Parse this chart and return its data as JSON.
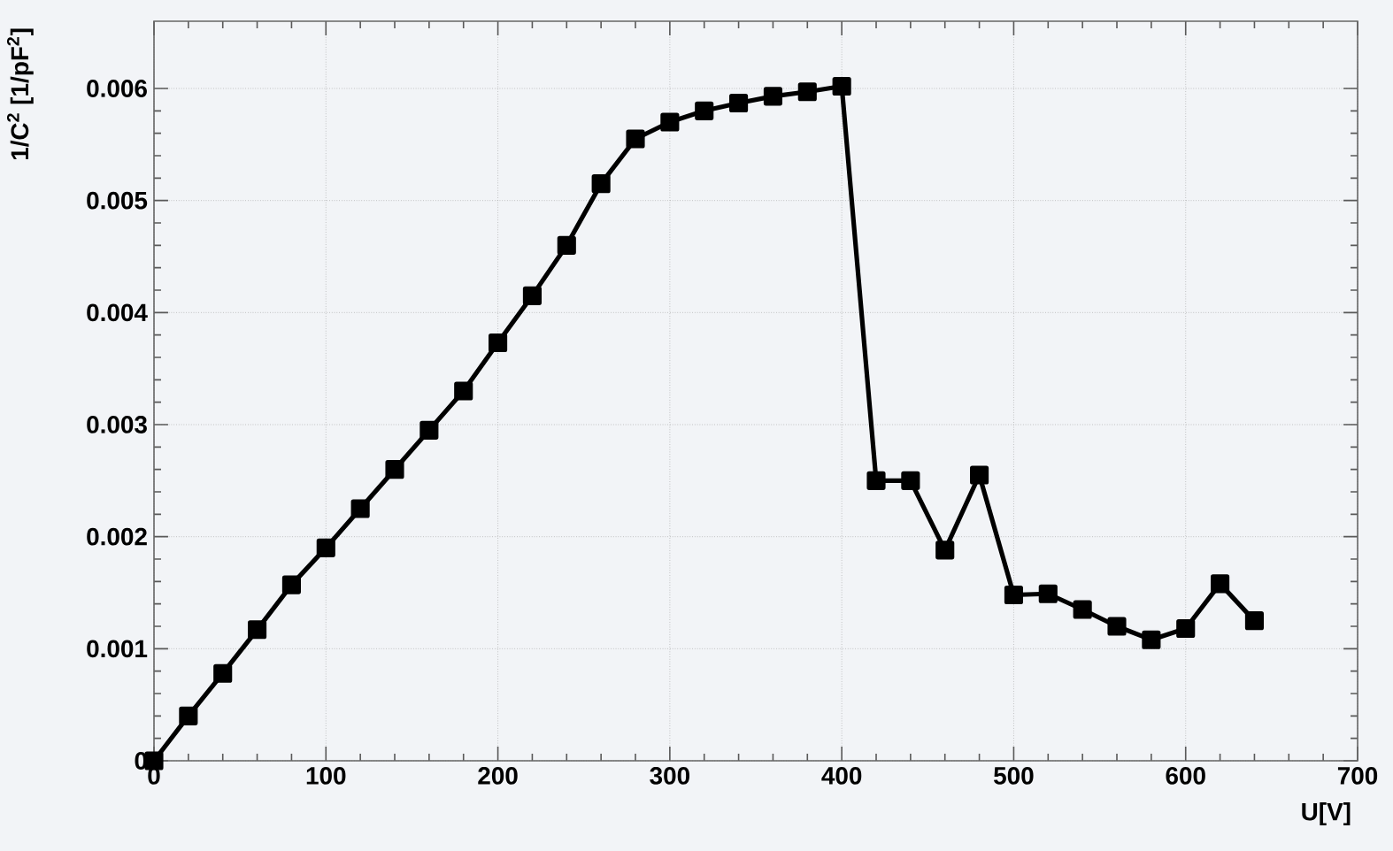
{
  "chart_data": {
    "type": "line",
    "xlabel": "U[V]",
    "ylabel": "1/C$^{2}$ [1/pF$^{2}$]",
    "x": [
      0,
      20,
      40,
      60,
      80,
      100,
      120,
      140,
      160,
      180,
      200,
      220,
      240,
      260,
      280,
      300,
      320,
      340,
      360,
      380,
      400,
      420,
      440,
      460,
      480,
      500,
      520,
      540,
      560,
      580,
      600,
      620,
      640
    ],
    "series": [
      {
        "color": "#000000",
        "values": [
          0,
          0.0004,
          0.00078,
          0.00117,
          0.00157,
          0.0019,
          0.00225,
          0.0026,
          0.00295,
          0.0033,
          0.00373,
          0.00415,
          0.0046,
          0.00515,
          0.00555,
          0.0057,
          0.0058,
          0.00587,
          0.00593,
          0.00597,
          0.00602,
          0.0025,
          0.0025,
          0.00188,
          0.00255,
          0.00148,
          0.00149,
          0.00135,
          0.0012,
          0.00108,
          0.00118,
          0.00158,
          0.00125
        ]
      }
    ],
    "xlim": [
      0,
      700
    ],
    "ylim": [
      0,
      0.0066
    ],
    "xticks": [
      0,
      100,
      200,
      300,
      400,
      500,
      600,
      700
    ],
    "yticks": [
      0,
      0.001,
      0.002,
      0.003,
      0.004,
      0.005,
      0.006
    ],
    "grid": true,
    "marker": "square",
    "line_style": "solid"
  }
}
